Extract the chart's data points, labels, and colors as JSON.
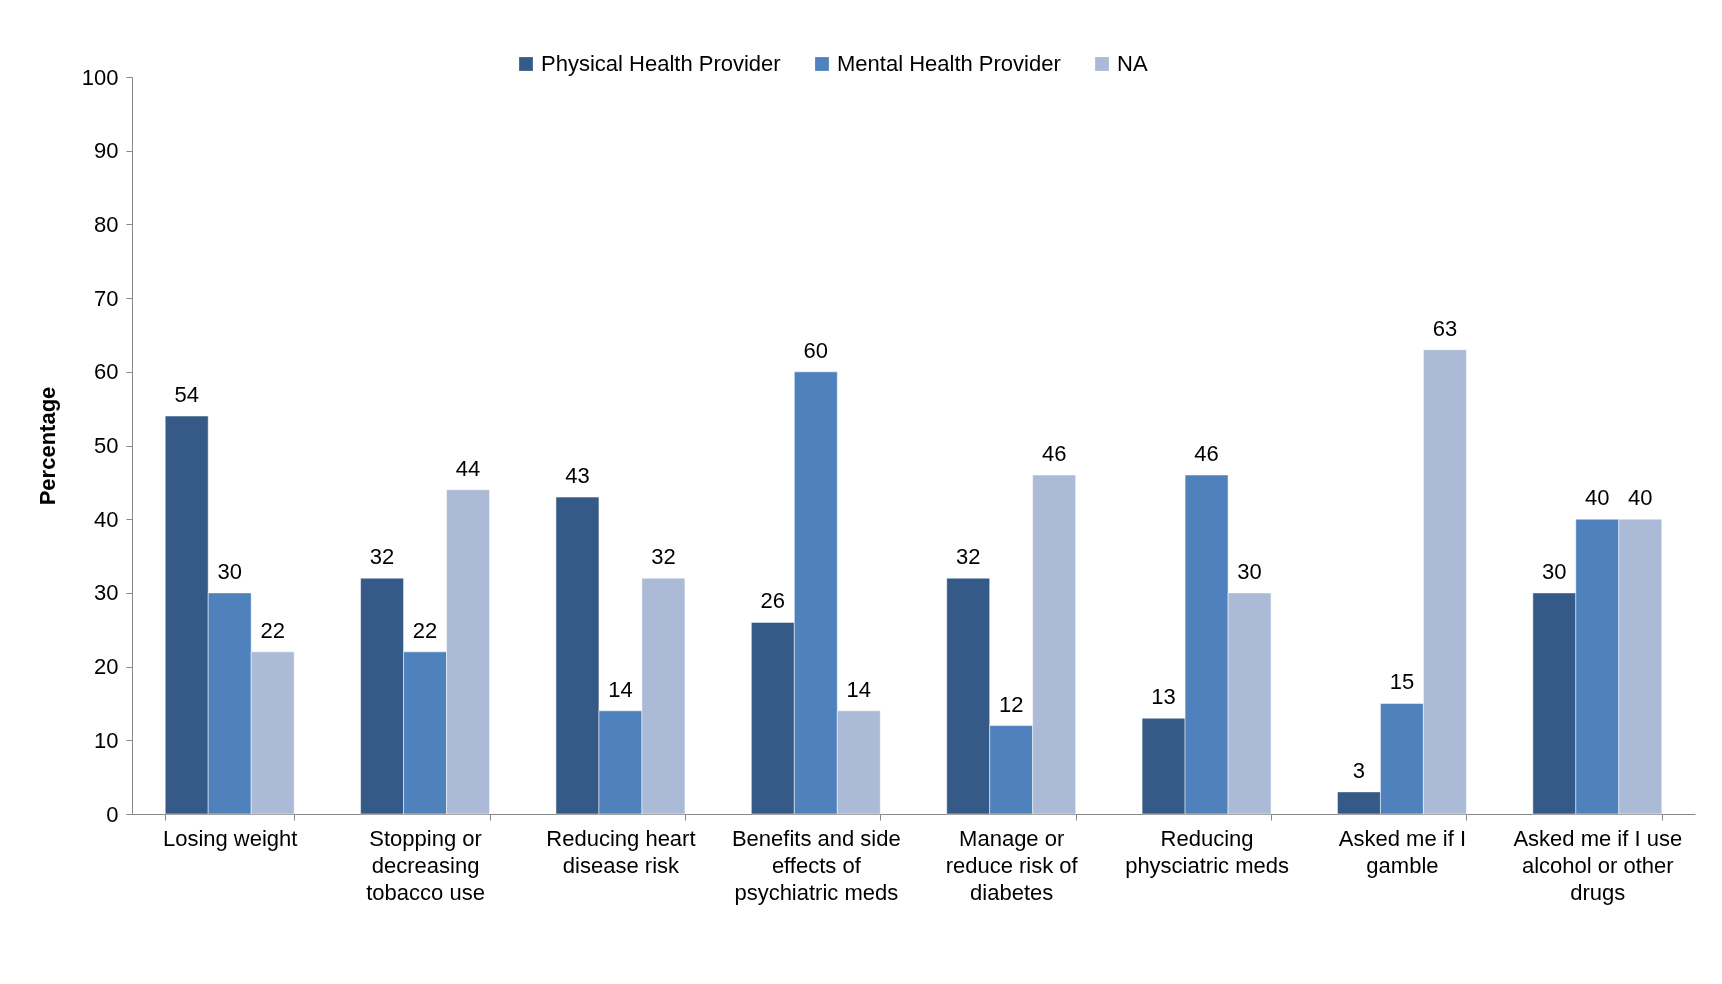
{
  "chart_data": {
    "type": "bar",
    "ylabel": "Percentage",
    "categories": [
      "Losing weight",
      "Stopping or decreasing tobacco use",
      "Reducing heart disease risk",
      "Benefits and side effects of psychiatric meds",
      "Manage or reduce risk of diabetes",
      "Reducing physciatric meds",
      "Asked me if I gamble",
      "Asked me if I use alcohol or other drugs"
    ],
    "series": [
      {
        "name": "Physical Health Provider",
        "color": "#355a87",
        "values": [
          54,
          32,
          43,
          26,
          32,
          13,
          3,
          30
        ]
      },
      {
        "name": "Mental Health Provider",
        "color": "#4f81bd",
        "values": [
          30,
          22,
          14,
          60,
          12,
          46,
          15,
          40
        ]
      },
      {
        "name": "NA",
        "color": "#aabad7",
        "values": [
          22,
          44,
          32,
          14,
          46,
          30,
          63,
          40
        ]
      }
    ],
    "ylim": [
      0,
      100
    ],
    "yticks": [
      0,
      10,
      20,
      30,
      40,
      50,
      60,
      70,
      80,
      90,
      100
    ],
    "data_labels": true,
    "legend": "top"
  }
}
